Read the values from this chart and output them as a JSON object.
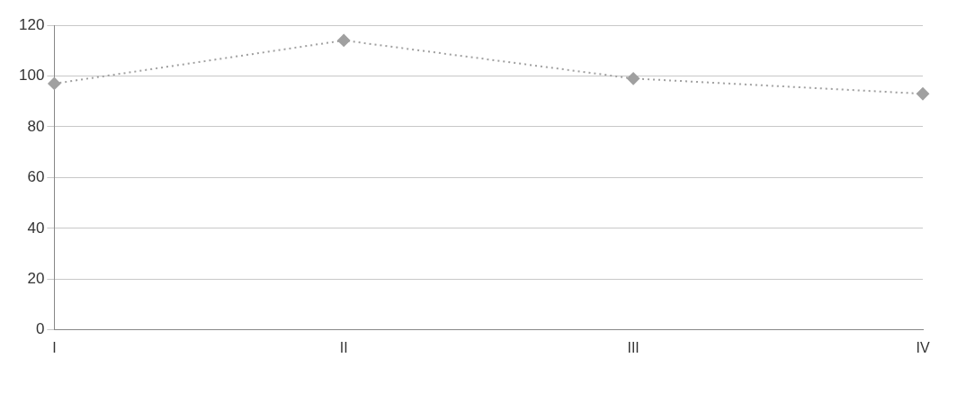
{
  "chart_data": {
    "type": "line",
    "categories": [
      "I",
      "II",
      "III",
      "IV"
    ],
    "series": [
      {
        "color": "#a0a0a0",
        "values": [
          97,
          114,
          99,
          93
        ]
      }
    ],
    "ylim": [
      0,
      120
    ],
    "yticks": [
      0,
      20,
      40,
      60,
      80,
      100,
      120
    ],
    "grid": "y",
    "legend": false,
    "marker": "diamond",
    "line_style": "dotted"
  }
}
